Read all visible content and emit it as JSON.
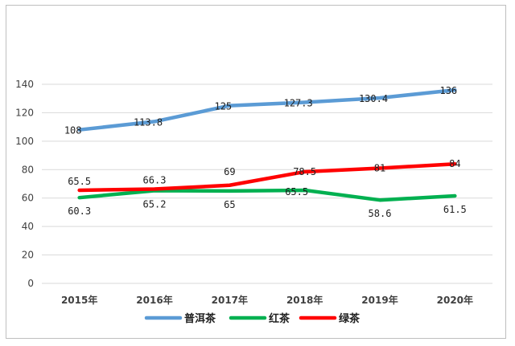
{
  "chart_data": {
    "type": "line",
    "categories": [
      "2015年",
      "2016年",
      "2017年",
      "2018年",
      "2019年",
      "2020年"
    ],
    "series": [
      {
        "name": "普洱茶",
        "color": "#5b9bd5",
        "values": [
          108,
          113.8,
          125,
          127.3,
          130.4,
          136
        ],
        "labels": [
          "108",
          "113.8",
          "125",
          "127.3",
          "130.4",
          "136"
        ]
      },
      {
        "name": "红茶",
        "color": "#00b050",
        "values": [
          60.3,
          65.2,
          65,
          65.5,
          58.6,
          61.5
        ],
        "labels": [
          "60.3",
          "65.2",
          "65",
          "65.5",
          "58.6",
          "61.5"
        ]
      },
      {
        "name": "绿茶",
        "color": "#ff0000",
        "values": [
          65.5,
          66.3,
          69,
          78.5,
          81,
          84
        ],
        "labels": [
          "65.5",
          "66.3",
          "69",
          "78.5",
          "81",
          "84"
        ]
      }
    ],
    "yticks": [
      "0",
      "20",
      "40",
      "60",
      "80",
      "100",
      "120",
      "140"
    ],
    "ylim": [
      0,
      140
    ],
    "grid": true,
    "legend_position": "bottom"
  }
}
